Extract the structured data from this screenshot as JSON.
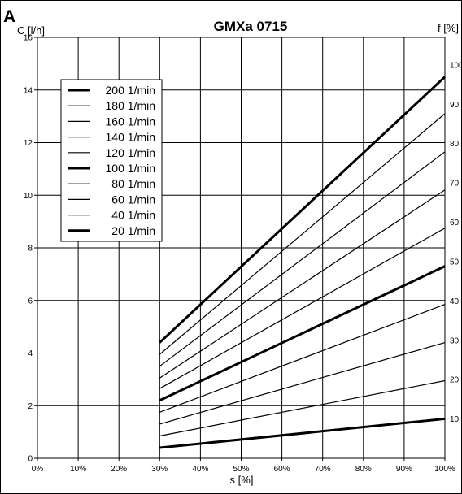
{
  "panel_letter": "A",
  "chart_data": {
    "type": "line",
    "title": "GMXa 0715",
    "ylabel": "C [l/h]",
    "y2label": "f [%]",
    "xlabel": "s [%]",
    "xlim": [
      0,
      100
    ],
    "ylim": [
      0,
      16
    ],
    "y2lim": [
      0,
      107
    ],
    "x_ticks": [
      0,
      10,
      20,
      30,
      40,
      50,
      60,
      70,
      80,
      90,
      100
    ],
    "x_tick_labels": [
      "0%",
      "10%",
      "20%",
      "30%",
      "40%",
      "50%",
      "60%",
      "70%",
      "80%",
      "90%",
      "100%"
    ],
    "y_ticks": [
      0,
      2,
      4,
      6,
      8,
      10,
      12,
      14,
      16
    ],
    "y_tick_labels": [
      "0",
      "2",
      "4",
      "6",
      "8",
      "10",
      "12",
      "14",
      "16"
    ],
    "y2_ticks": [
      10,
      20,
      30,
      40,
      50,
      60,
      70,
      80,
      90,
      100
    ],
    "y2_tick_labels": [
      "10",
      "20",
      "30",
      "40",
      "50",
      "60",
      "70",
      "80",
      "90",
      "100"
    ],
    "grid": true,
    "legend_position": "top-left",
    "line_color": "#000000",
    "series": [
      {
        "name": "200 1/min",
        "x": [
          30,
          100
        ],
        "y": [
          4.4,
          14.5
        ],
        "bold": true
      },
      {
        "name": "180 1/min",
        "x": [
          30,
          100
        ],
        "y": [
          3.95,
          13.1
        ],
        "bold": false
      },
      {
        "name": "160 1/min",
        "x": [
          30,
          100
        ],
        "y": [
          3.5,
          11.65
        ],
        "bold": false
      },
      {
        "name": "140 1/min",
        "x": [
          30,
          100
        ],
        "y": [
          3.05,
          10.2
        ],
        "bold": false
      },
      {
        "name": "120 1/min",
        "x": [
          30,
          100
        ],
        "y": [
          2.65,
          8.75
        ],
        "bold": false
      },
      {
        "name": "100 1/min",
        "x": [
          30,
          100
        ],
        "y": [
          2.2,
          7.3
        ],
        "bold": true
      },
      {
        "name": "80 1/min",
        "x": [
          30,
          100
        ],
        "y": [
          1.75,
          5.85
        ],
        "bold": false
      },
      {
        "name": "60 1/min",
        "x": [
          30,
          100
        ],
        "y": [
          1.3,
          4.4
        ],
        "bold": false
      },
      {
        "name": "40 1/min",
        "x": [
          30,
          100
        ],
        "y": [
          0.85,
          2.95
        ],
        "bold": false
      },
      {
        "name": "20 1/min",
        "x": [
          30,
          100
        ],
        "y": [
          0.4,
          1.5
        ],
        "bold": true
      }
    ]
  }
}
